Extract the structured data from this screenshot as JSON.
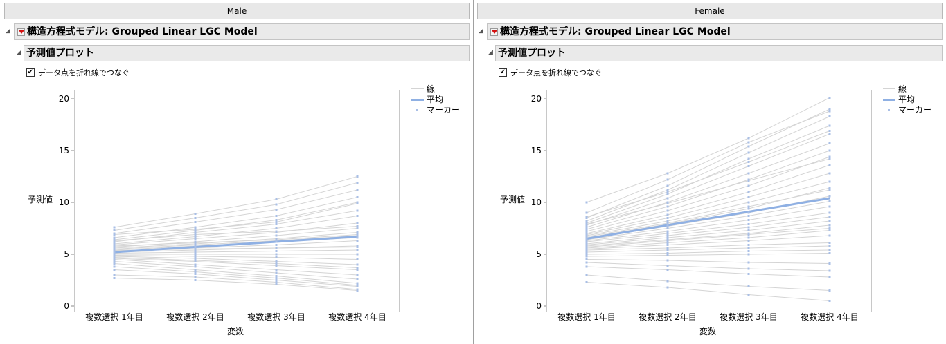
{
  "groups": [
    {
      "id": "male",
      "group_label": "Male",
      "report_title": "構造方程式モデル: Grouped Linear LGC Model",
      "section_title": "予測値プロット",
      "checkbox_label": "データ点を折れ線でつなぐ",
      "checkbox_checked": true
    },
    {
      "id": "female",
      "group_label": "Female",
      "report_title": "構造方程式モデル: Grouped Linear LGC Model",
      "section_title": "予測値プロット",
      "checkbox_label": "データ点を折れ線でつなぐ",
      "checkbox_checked": true
    }
  ],
  "legend": {
    "line_label": "線",
    "mean_label": "平均",
    "marker_label": "マーカー"
  },
  "colors": {
    "individual_line": "#d4d4d4",
    "mean_line": "#8fb0e3",
    "marker": "#a9bfe6",
    "disclosure_arrow": "#d41010"
  },
  "chart_data": [
    {
      "type": "line",
      "group": "Male",
      "xlabel": "変数",
      "ylabel": "予測値",
      "categories": [
        "複数選択 1年目",
        "複数選択 2年目",
        "複数選択 3年目",
        "複数選択 4年目"
      ],
      "ylim": [
        0,
        20
      ],
      "yticks": [
        0,
        5,
        10,
        15,
        20
      ],
      "mean": {
        "name": "平均",
        "values": [
          5.2,
          5.7,
          6.2,
          6.7
        ]
      },
      "individuals": [
        [
          7.6,
          8.9,
          10.3,
          12.5
        ],
        [
          7.3,
          8.5,
          9.8,
          11.9
        ],
        [
          7.0,
          8.1,
          9.3,
          11.2
        ],
        [
          6.6,
          7.6,
          8.7,
          10.5
        ],
        [
          6.4,
          7.3,
          8.3,
          10.0
        ],
        [
          6.2,
          7.1,
          7.9,
          9.2
        ],
        [
          6.0,
          6.7,
          7.5,
          8.7
        ],
        [
          5.9,
          6.5,
          7.1,
          8.0
        ],
        [
          5.7,
          6.2,
          6.8,
          7.5
        ],
        [
          5.6,
          6.0,
          6.5,
          7.1
        ],
        [
          5.5,
          5.9,
          6.3,
          6.8
        ],
        [
          5.4,
          5.8,
          6.2,
          6.6
        ],
        [
          5.3,
          5.6,
          5.9,
          6.3
        ],
        [
          5.2,
          5.4,
          5.6,
          5.8
        ],
        [
          5.1,
          5.2,
          5.3,
          5.4
        ],
        [
          5.0,
          5.0,
          5.0,
          5.0
        ],
        [
          4.9,
          4.8,
          4.7,
          4.5
        ],
        [
          4.8,
          4.6,
          4.3,
          4.0
        ],
        [
          4.6,
          4.3,
          3.9,
          3.5
        ],
        [
          4.5,
          4.0,
          3.5,
          3.0
        ],
        [
          4.3,
          3.8,
          3.2,
          2.6
        ],
        [
          4.1,
          3.5,
          2.9,
          2.2
        ],
        [
          3.8,
          3.3,
          2.7,
          2.0
        ],
        [
          3.5,
          3.1,
          2.5,
          1.9
        ],
        [
          3.0,
          2.8,
          2.3,
          1.6
        ],
        [
          2.7,
          2.5,
          2.1,
          1.5
        ],
        [
          6.9,
          7.4,
          8.1,
          9.9
        ],
        [
          6.3,
          6.9,
          7.2,
          7.7
        ],
        [
          5.8,
          6.1,
          6.4,
          6.9
        ],
        [
          5.35,
          5.5,
          5.6,
          5.7
        ],
        [
          4.7,
          4.4,
          4.1,
          3.7
        ]
      ]
    },
    {
      "type": "line",
      "group": "Female",
      "xlabel": "変数",
      "ylabel": "予測値",
      "categories": [
        "複数選択 1年目",
        "複数選択 2年目",
        "複数選択 3年目",
        "複数選択 4年目"
      ],
      "ylim": [
        0,
        20
      ],
      "yticks": [
        0,
        5,
        10,
        15,
        20
      ],
      "mean": {
        "name": "平均",
        "values": [
          6.5,
          7.8,
          9.1,
          10.4
        ]
      },
      "individuals": [
        [
          10.0,
          12.8,
          16.2,
          20.1
        ],
        [
          8.5,
          11.6,
          15.4,
          19.0
        ],
        [
          8.2,
          11.2,
          14.8,
          18.3
        ],
        [
          8.0,
          10.8,
          14.2,
          17.4
        ],
        [
          7.8,
          10.4,
          13.5,
          16.6
        ],
        [
          7.6,
          10.0,
          12.8,
          15.7
        ],
        [
          7.4,
          9.6,
          12.2,
          15.0
        ],
        [
          7.2,
          9.2,
          11.6,
          14.4
        ],
        [
          7.0,
          8.8,
          11.0,
          13.6
        ],
        [
          6.9,
          8.5,
          10.5,
          12.8
        ],
        [
          6.8,
          8.2,
          10.0,
          12.0
        ],
        [
          6.6,
          7.9,
          9.4,
          11.4
        ],
        [
          6.5,
          7.7,
          9.0,
          10.6
        ],
        [
          6.4,
          7.5,
          8.7,
          10.1
        ],
        [
          6.3,
          7.2,
          8.3,
          9.6
        ],
        [
          6.2,
          7.0,
          7.9,
          9.0
        ],
        [
          6.0,
          6.8,
          7.6,
          8.6
        ],
        [
          5.9,
          6.6,
          7.3,
          8.2
        ],
        [
          5.8,
          6.4,
          7.0,
          7.8
        ],
        [
          5.6,
          6.1,
          6.6,
          7.3
        ],
        [
          5.5,
          5.9,
          6.3,
          6.8
        ],
        [
          5.4,
          5.6,
          5.9,
          6.1
        ],
        [
          5.2,
          5.4,
          5.6,
          5.8
        ],
        [
          5.0,
          5.1,
          5.3,
          5.4
        ],
        [
          4.8,
          4.9,
          5.0,
          5.1
        ],
        [
          4.5,
          4.4,
          4.2,
          4.1
        ],
        [
          4.2,
          3.9,
          3.6,
          3.4
        ],
        [
          3.8,
          3.5,
          3.1,
          2.8
        ],
        [
          3.0,
          2.4,
          1.9,
          1.5
        ],
        [
          2.3,
          1.8,
          1.1,
          0.5
        ],
        [
          9.0,
          12.2,
          15.8,
          18.8
        ],
        [
          8.6,
          11.0,
          13.9,
          16.9
        ],
        [
          7.9,
          9.9,
          12.1,
          14.2
        ],
        [
          6.7,
          8.0,
          9.6,
          11.2
        ],
        [
          5.7,
          6.3,
          6.9,
          7.5
        ]
      ]
    }
  ]
}
